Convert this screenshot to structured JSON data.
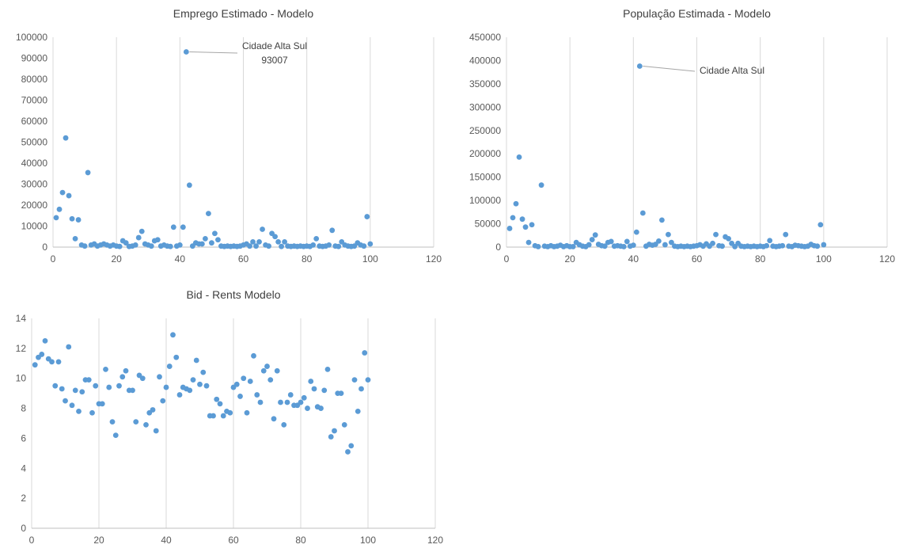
{
  "chart_data": [
    {
      "id": "emprego",
      "type": "scatter",
      "title": "Emprego Estimado - Modelo",
      "xlabel": "",
      "ylabel": "",
      "xlim": [
        0,
        120
      ],
      "ylim": [
        0,
        100000
      ],
      "xticks": [
        0,
        20,
        40,
        60,
        80,
        100,
        120
      ],
      "yticks": [
        0,
        10000,
        20000,
        30000,
        40000,
        50000,
        60000,
        70000,
        80000,
        90000,
        100000
      ],
      "grid": "vertical",
      "marker_color": "#5b9bd5",
      "annotation": {
        "line1": "Cidade Alta Sul",
        "line2": "93007",
        "x": 42,
        "y": 93007
      },
      "points": [
        [
          1,
          14000
        ],
        [
          2,
          18000
        ],
        [
          3,
          26000
        ],
        [
          4,
          52000
        ],
        [
          5,
          24500
        ],
        [
          6,
          13500
        ],
        [
          7,
          4000
        ],
        [
          8,
          13000
        ],
        [
          9,
          1000
        ],
        [
          10,
          500
        ],
        [
          11,
          35500
        ],
        [
          12,
          1000
        ],
        [
          13,
          1500
        ],
        [
          14,
          500
        ],
        [
          15,
          1000
        ],
        [
          16,
          1500
        ],
        [
          17,
          1000
        ],
        [
          18,
          500
        ],
        [
          19,
          1000
        ],
        [
          20,
          500
        ],
        [
          21,
          300
        ],
        [
          22,
          3000
        ],
        [
          23,
          2000
        ],
        [
          24,
          300
        ],
        [
          25,
          500
        ],
        [
          26,
          1000
        ],
        [
          27,
          4500
        ],
        [
          28,
          7500
        ],
        [
          29,
          1500
        ],
        [
          30,
          1000
        ],
        [
          31,
          500
        ],
        [
          32,
          3000
        ],
        [
          33,
          3500
        ],
        [
          34,
          500
        ],
        [
          35,
          1000
        ],
        [
          36,
          500
        ],
        [
          37,
          300
        ],
        [
          38,
          9500
        ],
        [
          39,
          500
        ],
        [
          40,
          1000
        ],
        [
          41,
          9500
        ],
        [
          42,
          93007
        ],
        [
          43,
          29500
        ],
        [
          44,
          500
        ],
        [
          45,
          2000
        ],
        [
          46,
          1500
        ],
        [
          47,
          1500
        ],
        [
          48,
          4000
        ],
        [
          49,
          16000
        ],
        [
          50,
          2000
        ],
        [
          51,
          6500
        ],
        [
          52,
          3500
        ],
        [
          53,
          500
        ],
        [
          54,
          300
        ],
        [
          55,
          500
        ],
        [
          56,
          300
        ],
        [
          57,
          500
        ],
        [
          58,
          300
        ],
        [
          59,
          500
        ],
        [
          60,
          1000
        ],
        [
          61,
          1500
        ],
        [
          62,
          500
        ],
        [
          63,
          2500
        ],
        [
          64,
          500
        ],
        [
          65,
          2500
        ],
        [
          66,
          8500
        ],
        [
          67,
          1000
        ],
        [
          68,
          500
        ],
        [
          69,
          6500
        ],
        [
          70,
          5000
        ],
        [
          71,
          2500
        ],
        [
          72,
          300
        ],
        [
          73,
          2500
        ],
        [
          74,
          500
        ],
        [
          75,
          300
        ],
        [
          76,
          500
        ],
        [
          77,
          300
        ],
        [
          78,
          500
        ],
        [
          79,
          300
        ],
        [
          80,
          500
        ],
        [
          81,
          300
        ],
        [
          82,
          1000
        ],
        [
          83,
          4000
        ],
        [
          84,
          500
        ],
        [
          85,
          300
        ],
        [
          86,
          500
        ],
        [
          87,
          1000
        ],
        [
          88,
          8000
        ],
        [
          89,
          500
        ],
        [
          90,
          300
        ],
        [
          91,
          2500
        ],
        [
          92,
          1000
        ],
        [
          93,
          500
        ],
        [
          94,
          300
        ],
        [
          95,
          500
        ],
        [
          96,
          2000
        ],
        [
          97,
          1000
        ],
        [
          98,
          500
        ],
        [
          99,
          14500
        ],
        [
          100,
          1500
        ]
      ]
    },
    {
      "id": "populacao",
      "type": "scatter",
      "title": "População Estimada - Modelo",
      "xlabel": "",
      "ylabel": "",
      "xlim": [
        0,
        120
      ],
      "ylim": [
        0,
        450000
      ],
      "xticks": [
        0,
        20,
        40,
        60,
        80,
        100,
        120
      ],
      "yticks": [
        0,
        50000,
        100000,
        150000,
        200000,
        250000,
        300000,
        350000,
        400000,
        450000
      ],
      "grid": "vertical",
      "marker_color": "#5b9bd5",
      "annotation": {
        "line1": "Cidade Alta Sul",
        "line2": "",
        "x": 42,
        "y": 388000
      },
      "points": [
        [
          1,
          40000
        ],
        [
          2,
          63000
        ],
        [
          3,
          93000
        ],
        [
          4,
          193000
        ],
        [
          5,
          60000
        ],
        [
          6,
          43000
        ],
        [
          7,
          10000
        ],
        [
          8,
          48000
        ],
        [
          9,
          3000
        ],
        [
          10,
          1000
        ],
        [
          11,
          133000
        ],
        [
          12,
          2000
        ],
        [
          13,
          1000
        ],
        [
          14,
          3000
        ],
        [
          15,
          1000
        ],
        [
          16,
          2000
        ],
        [
          17,
          4000
        ],
        [
          18,
          1000
        ],
        [
          19,
          3000
        ],
        [
          20,
          1000
        ],
        [
          21,
          1000
        ],
        [
          22,
          10000
        ],
        [
          23,
          5000
        ],
        [
          24,
          2000
        ],
        [
          25,
          1000
        ],
        [
          26,
          5000
        ],
        [
          27,
          16000
        ],
        [
          28,
          26000
        ],
        [
          29,
          6000
        ],
        [
          30,
          3000
        ],
        [
          31,
          2000
        ],
        [
          32,
          10000
        ],
        [
          33,
          12000
        ],
        [
          34,
          2000
        ],
        [
          35,
          3000
        ],
        [
          36,
          2000
        ],
        [
          37,
          1000
        ],
        [
          38,
          12000
        ],
        [
          39,
          2000
        ],
        [
          40,
          4000
        ],
        [
          41,
          32000
        ],
        [
          42,
          388000
        ],
        [
          43,
          73000
        ],
        [
          44,
          2000
        ],
        [
          45,
          6000
        ],
        [
          46,
          4000
        ],
        [
          47,
          6000
        ],
        [
          48,
          13000
        ],
        [
          49,
          58000
        ],
        [
          50,
          5000
        ],
        [
          51,
          27000
        ],
        [
          52,
          10000
        ],
        [
          53,
          2000
        ],
        [
          54,
          1000
        ],
        [
          55,
          2000
        ],
        [
          56,
          1000
        ],
        [
          57,
          2000
        ],
        [
          58,
          1000
        ],
        [
          59,
          2000
        ],
        [
          60,
          3000
        ],
        [
          61,
          5000
        ],
        [
          62,
          2000
        ],
        [
          63,
          7000
        ],
        [
          64,
          2000
        ],
        [
          65,
          8000
        ],
        [
          66,
          27000
        ],
        [
          67,
          3000
        ],
        [
          68,
          2000
        ],
        [
          69,
          22000
        ],
        [
          70,
          18000
        ],
        [
          71,
          8000
        ],
        [
          72,
          1000
        ],
        [
          73,
          8000
        ],
        [
          74,
          2000
        ],
        [
          75,
          1000
        ],
        [
          76,
          2000
        ],
        [
          77,
          1000
        ],
        [
          78,
          2000
        ],
        [
          79,
          1000
        ],
        [
          80,
          2000
        ],
        [
          81,
          1000
        ],
        [
          82,
          3000
        ],
        [
          83,
          14000
        ],
        [
          84,
          2000
        ],
        [
          85,
          1000
        ],
        [
          86,
          2000
        ],
        [
          87,
          3000
        ],
        [
          88,
          27000
        ],
        [
          89,
          2000
        ],
        [
          90,
          1000
        ],
        [
          91,
          4000
        ],
        [
          92,
          3000
        ],
        [
          93,
          2000
        ],
        [
          94,
          1000
        ],
        [
          95,
          2000
        ],
        [
          96,
          6000
        ],
        [
          97,
          3000
        ],
        [
          98,
          2000
        ],
        [
          99,
          48000
        ],
        [
          100,
          5000
        ]
      ]
    },
    {
      "id": "bidrents",
      "type": "scatter",
      "title": "Bid - Rents Modelo",
      "xlabel": "",
      "ylabel": "",
      "xlim": [
        0,
        120
      ],
      "ylim": [
        0,
        14
      ],
      "xticks": [
        0,
        20,
        40,
        60,
        80,
        100,
        120
      ],
      "yticks": [
        0,
        2,
        4,
        6,
        8,
        10,
        12,
        14
      ],
      "grid": "vertical",
      "marker_color": "#5b9bd5",
      "points": [
        [
          1,
          10.9
        ],
        [
          2,
          11.4
        ],
        [
          3,
          11.6
        ],
        [
          4,
          12.5
        ],
        [
          5,
          11.3
        ],
        [
          6,
          11.1
        ],
        [
          7,
          9.5
        ],
        [
          8,
          11.1
        ],
        [
          9,
          9.3
        ],
        [
          10,
          8.5
        ],
        [
          11,
          12.1
        ],
        [
          12,
          8.2
        ],
        [
          13,
          9.2
        ],
        [
          14,
          7.8
        ],
        [
          15,
          9.1
        ],
        [
          16,
          9.9
        ],
        [
          17,
          9.9
        ],
        [
          18,
          7.7
        ],
        [
          19,
          9.5
        ],
        [
          20,
          8.3
        ],
        [
          21,
          8.3
        ],
        [
          22,
          10.6
        ],
        [
          23,
          9.4
        ],
        [
          24,
          7.1
        ],
        [
          25,
          6.2
        ],
        [
          26,
          9.5
        ],
        [
          27,
          10.1
        ],
        [
          28,
          10.5
        ],
        [
          29,
          9.2
        ],
        [
          30,
          9.2
        ],
        [
          31,
          7.1
        ],
        [
          32,
          10.2
        ],
        [
          33,
          10.0
        ],
        [
          34,
          6.9
        ],
        [
          35,
          7.7
        ],
        [
          36,
          7.9
        ],
        [
          37,
          6.5
        ],
        [
          38,
          10.1
        ],
        [
          39,
          8.5
        ],
        [
          40,
          9.4
        ],
        [
          41,
          10.8
        ],
        [
          42,
          12.9
        ],
        [
          43,
          11.4
        ],
        [
          44,
          8.9
        ],
        [
          45,
          9.4
        ],
        [
          46,
          9.3
        ],
        [
          47,
          9.2
        ],
        [
          48,
          9.9
        ],
        [
          49,
          11.2
        ],
        [
          50,
          9.6
        ],
        [
          51,
          10.4
        ],
        [
          52,
          9.5
        ],
        [
          53,
          7.5
        ],
        [
          54,
          7.5
        ],
        [
          55,
          8.6
        ],
        [
          56,
          8.3
        ],
        [
          57,
          7.5
        ],
        [
          58,
          7.8
        ],
        [
          59,
          7.7
        ],
        [
          60,
          9.4
        ],
        [
          61,
          9.6
        ],
        [
          62,
          8.8
        ],
        [
          63,
          10.0
        ],
        [
          64,
          7.7
        ],
        [
          65,
          9.8
        ],
        [
          66,
          11.5
        ],
        [
          67,
          8.9
        ],
        [
          68,
          8.4
        ],
        [
          69,
          10.5
        ],
        [
          70,
          10.8
        ],
        [
          71,
          9.9
        ],
        [
          72,
          7.3
        ],
        [
          73,
          10.5
        ],
        [
          74,
          8.4
        ],
        [
          75,
          6.9
        ],
        [
          76,
          8.4
        ],
        [
          77,
          8.9
        ],
        [
          78,
          8.2
        ],
        [
          79,
          8.2
        ],
        [
          80,
          8.4
        ],
        [
          81,
          8.7
        ],
        [
          82,
          8.0
        ],
        [
          83,
          9.8
        ],
        [
          84,
          9.3
        ],
        [
          85,
          8.1
        ],
        [
          86,
          8.0
        ],
        [
          87,
          9.2
        ],
        [
          88,
          10.6
        ],
        [
          89,
          6.1
        ],
        [
          90,
          6.5
        ],
        [
          91,
          9.0
        ],
        [
          92,
          9.0
        ],
        [
          93,
          6.9
        ],
        [
          94,
          5.1
        ],
        [
          95,
          5.5
        ],
        [
          96,
          9.9
        ],
        [
          97,
          7.8
        ],
        [
          98,
          9.3
        ],
        [
          99,
          11.7
        ],
        [
          100,
          9.9
        ]
      ]
    }
  ]
}
